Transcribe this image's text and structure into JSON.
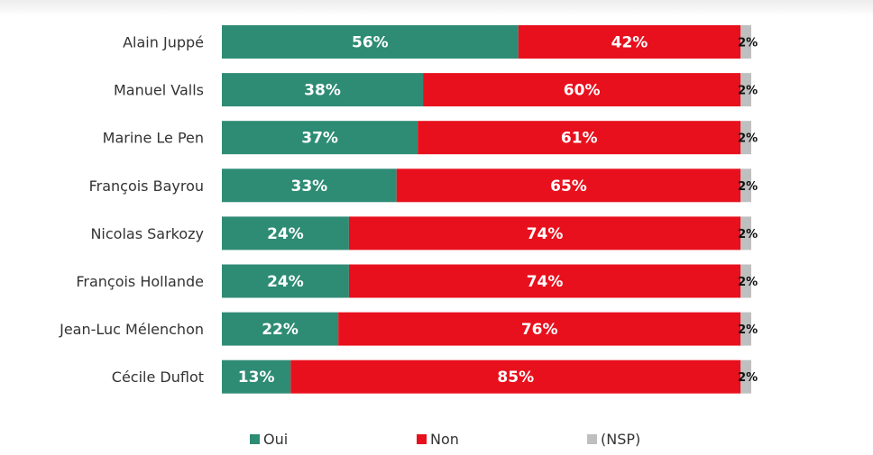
{
  "chart_data": {
    "type": "bar",
    "orientation": "horizontal",
    "stacked": true,
    "percent_stacked": true,
    "title": "",
    "xlabel": "",
    "ylabel": "",
    "xlim": [
      0,
      100
    ],
    "grid": false,
    "legend_position": "bottom",
    "categories": [
      "Alain Juppé",
      "Manuel Valls",
      "Marine Le Pen",
      "François Bayrou",
      "Nicolas Sarkozy",
      "François Hollande",
      "Jean-Luc Mélenchon",
      "Cécile Duflot"
    ],
    "series": [
      {
        "name": "Oui",
        "color": "#2e8b74",
        "values": [
          56,
          38,
          37,
          33,
          24,
          24,
          22,
          13
        ]
      },
      {
        "name": "Non",
        "color": "#e8101d",
        "values": [
          42,
          60,
          61,
          65,
          74,
          74,
          76,
          85
        ]
      },
      {
        "name": "(NSP)",
        "color": "#bfbfbf",
        "values": [
          2,
          2,
          2,
          2,
          2,
          2,
          2,
          2
        ]
      }
    ],
    "value_suffix": "%"
  }
}
